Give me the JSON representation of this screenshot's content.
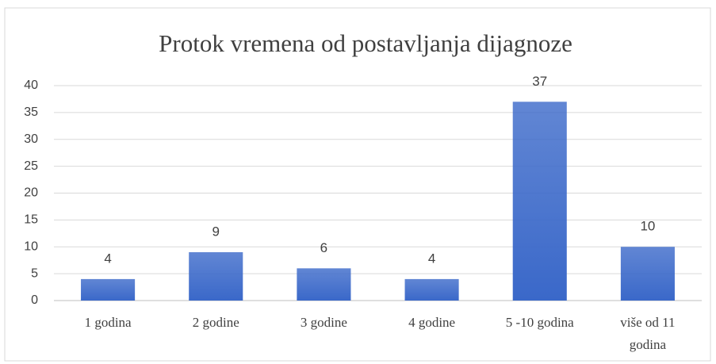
{
  "chart_data": {
    "type": "bar",
    "title": "Protok vremena od postavljanja dijagnoze",
    "categories": [
      "1 godina",
      "2 godine",
      "3 godine",
      "4 godine",
      "5 -10 godina",
      "više od 11 godina"
    ],
    "values": [
      4,
      9,
      6,
      4,
      37,
      10
    ],
    "color": "#3a68c9",
    "ylim": [
      0,
      40
    ],
    "yticks": [
      0,
      5,
      10,
      15,
      20,
      25,
      30,
      35,
      40
    ],
    "grid": true
  }
}
